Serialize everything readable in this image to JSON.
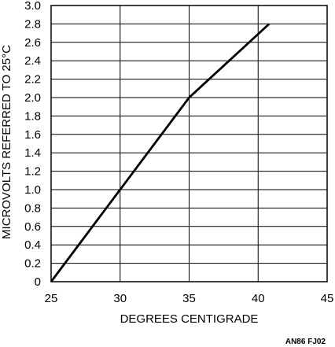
{
  "chart_data": {
    "type": "line",
    "title": "",
    "xlabel": "DEGREES CENTIGRADE",
    "ylabel": "MICROVOLTS REFERRED TO 25°C",
    "xlim": [
      25,
      45
    ],
    "ylim": [
      0,
      3.0
    ],
    "x_ticks": [
      25,
      30,
      35,
      40,
      45
    ],
    "x_tick_labels": [
      "25",
      "30",
      "35",
      "40",
      "45"
    ],
    "y_ticks": [
      0,
      0.2,
      0.4,
      0.6,
      0.8,
      1.0,
      1.2,
      1.4,
      1.6,
      1.8,
      2.0,
      2.2,
      2.4,
      2.6,
      2.8,
      3.0
    ],
    "y_tick_labels": [
      "0",
      "0.2",
      "0.4",
      "0.6",
      "0.8",
      "1.0",
      "1.2",
      "1.4",
      "1.6",
      "1.8",
      "2.0",
      "2.2",
      "2.4",
      "2.6",
      "2.8",
      "3.0"
    ],
    "grid": true,
    "series": [
      {
        "x": [
          25,
          35,
          40.8
        ],
        "y": [
          0,
          2.0,
          2.8
        ]
      }
    ]
  },
  "figure_id": "AN86 FJ02",
  "colors": {
    "line": "#000000",
    "grid": "#000000"
  }
}
